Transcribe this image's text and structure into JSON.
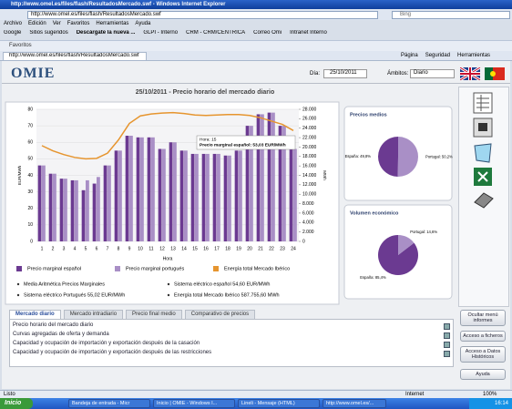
{
  "browser": {
    "window_title": "http://www.omel.es/files/flash/ResultadosMercado.swf - Windows Internet Explorer",
    "address": "http://www.omel.es/files/flash/ResultadosMercado.swf",
    "search": "Bing",
    "menu": [
      "Archivo",
      "Edición",
      "Ver",
      "Favoritos",
      "Herramientas",
      "Ayuda"
    ],
    "toolbar": [
      "Google",
      "Sitios sugeridos",
      "Descárgate la nueva ...",
      "GLPI - Interno",
      "CRM - CRM/CENTRICA",
      "Correo Omi",
      "Intranet Interno"
    ],
    "favorites": "Favoritos",
    "tab": "http://www.omel.es/files/flash/ResultadosMercado.swf",
    "commands": [
      "Página",
      "Seguridad",
      "Herramientas"
    ],
    "status": "Listo",
    "zone": "Internet",
    "zoom": "100%",
    "start": "Inicio",
    "tasks": [
      "Bandeja de entrada - Micr",
      "Inicio | OMIE - Windows I...",
      "Lineli - Mensaje (HTML)",
      "http://www.omel.es/..."
    ],
    "clock": "16:14"
  },
  "page": {
    "logo": "OMIE",
    "day_label": "Día:",
    "day": "25/10/2011",
    "scope_label": "Ámbitos:",
    "scope": "Diario",
    "tooltip": [
      "Hora: 15",
      "Precio marginal español: 53,03 EUR/MWh"
    ],
    "stats_title": "Media Aritmética Precios Marginales",
    "stats": [
      "Sistema eléctrico español  54,60 EUR/MWh",
      "Sistema eléctrico Portugués  55,02 EUR/MWh",
      "Energía total Mercado Ibérico  587.755,60 MWh"
    ],
    "tabs": [
      "Mercado diario",
      "Mercado intradiario",
      "Precio final medio",
      "Comparativo de precios"
    ],
    "reports": [
      "Precio horario del mercado diario",
      "Curvas agregadas de oferta y demanda",
      "Capacidad y ocupación de importación y exportación después de la casación",
      "Capacidad y ocupación de importación y exportación después de las restricciones"
    ],
    "buttons": [
      "Ocultar menú informes",
      "Acceso a ficheros",
      "Acceso a Datos Históricos",
      "Ayuda"
    ]
  },
  "chart_data": [
    {
      "type": "bar",
      "title": "25/10/2011 - Precio horario del mercado diario",
      "x_label": "Hora",
      "y_label": "EUR/MWh",
      "y2_label": "MWh",
      "categories": [
        "1",
        "2",
        "3",
        "4",
        "5",
        "6",
        "7",
        "8",
        "9",
        "10",
        "11",
        "12",
        "13",
        "14",
        "15",
        "16",
        "17",
        "18",
        "19",
        "20",
        "21",
        "22",
        "23",
        "24"
      ],
      "series": [
        {
          "name": "Precio marginal español",
          "color": "#6b3a91",
          "values": [
            46,
            41,
            38,
            37,
            31,
            35,
            46,
            55,
            64,
            63,
            63,
            56,
            60,
            55,
            53,
            53,
            53,
            52,
            55,
            70,
            77,
            78,
            70,
            56
          ]
        },
        {
          "name": "Precio marginal portugués",
          "color": "#a98fc6",
          "values": [
            46,
            41,
            38,
            37,
            37,
            39,
            46,
            55,
            64,
            63,
            63,
            56,
            60,
            55,
            53,
            53,
            53,
            52,
            55,
            70,
            77,
            78,
            70,
            56
          ]
        },
        {
          "name": "Energía total Mercado Ibérico",
          "color": "#e6952f",
          "type": "line",
          "axis": "y2",
          "values": [
            20300,
            19200,
            18400,
            17800,
            17500,
            17600,
            18700,
            21500,
            25000,
            26600,
            27000,
            27200,
            27300,
            27100,
            26800,
            26700,
            26800,
            26900,
            26900,
            26700,
            26200,
            25500,
            24800,
            23500
          ]
        }
      ],
      "ylim": [
        0,
        80
      ],
      "yticks": [
        0,
        10,
        20,
        30,
        40,
        50,
        60,
        70,
        80
      ],
      "y2lim": [
        0,
        28000
      ],
      "y2ticks": [
        0,
        {
          "value": 2000,
          "label": "2.000"
        },
        {
          "value": 4000,
          "label": "4.000"
        },
        {
          "value": 6000,
          "label": "6.000"
        },
        {
          "value": 8000,
          "label": "8.000"
        },
        {
          "value": 10000,
          "label": "10.000"
        },
        {
          "value": 12000,
          "label": "12.000"
        },
        {
          "value": 14000,
          "label": "14.000"
        },
        {
          "value": 16000,
          "label": "16.000"
        },
        {
          "value": 18000,
          "label": "18.000"
        },
        {
          "value": 20000,
          "label": "20.000"
        },
        {
          "value": 22000,
          "label": "22.000"
        },
        {
          "value": 24000,
          "label": "24.000"
        },
        {
          "value": 26000,
          "label": "26.000"
        },
        {
          "value": 28000,
          "label": "28.000"
        }
      ],
      "grid": true
    },
    {
      "type": "pie",
      "title": "Precios medios",
      "categories": [
        "España",
        "Portugal"
      ],
      "colors": [
        "#6b3a91",
        "#a98fc6"
      ],
      "values": [
        49.8,
        50.2
      ],
      "value_labels": [
        "España: 49,8%",
        "Portugal: 50,2%"
      ]
    },
    {
      "type": "pie",
      "title": "Volumen económico",
      "categories": [
        "España",
        "Portugal"
      ],
      "colors": [
        "#6b3a91",
        "#a98fc6"
      ],
      "values": [
        85.4,
        14.6
      ],
      "value_labels": [
        "España: 85,4%",
        "Portugal: 14,6%"
      ]
    }
  ]
}
